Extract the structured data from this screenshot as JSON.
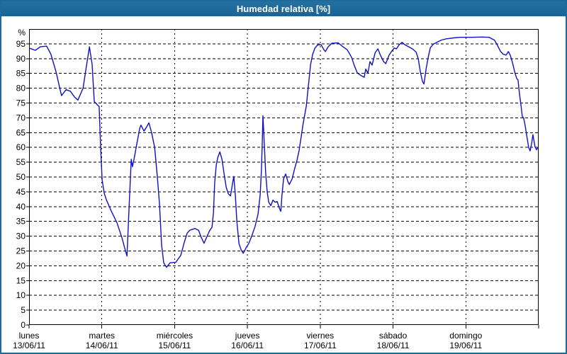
{
  "window": {
    "title": "Humedad relativa [%]"
  },
  "colors": {
    "frame": "#1e6a9d",
    "titlebar_bg": "#1d6899",
    "titlebar_text": "#ffffff",
    "chart_bg": "#ffffff",
    "plot_border": "#000000",
    "grid": "#000000",
    "tick_text": "#000000",
    "line": "#0f10c8"
  },
  "chart_data": {
    "type": "line",
    "title": "Humedad relativa [%]",
    "y_unit_label": "%",
    "ylim": [
      0,
      100
    ],
    "y_ticks": [
      0,
      5,
      10,
      15,
      20,
      25,
      30,
      35,
      40,
      45,
      50,
      55,
      60,
      65,
      70,
      75,
      80,
      85,
      90,
      95
    ],
    "x_range_hours": [
      0,
      168
    ],
    "grid": "dashed",
    "legend_position": "none",
    "x_axis_days": [
      {
        "name": "lunes",
        "date": "13/06/11"
      },
      {
        "name": "martes",
        "date": "14/06/11"
      },
      {
        "name": "miércoles",
        "date": "15/06/11"
      },
      {
        "name": "jueves",
        "date": "16/06/11"
      },
      {
        "name": "viernes",
        "date": "17/06/11"
      },
      {
        "name": "sábado",
        "date": "18/06/11"
      },
      {
        "name": "domingo",
        "date": "19/06/11"
      }
    ],
    "series": [
      {
        "name": "Humedad relativa",
        "unit": "%",
        "color": "#0f10c8",
        "points": [
          [
            0.2,
            93.5
          ],
          [
            2.1,
            92.8
          ],
          [
            3.7,
            94.0
          ],
          [
            5.8,
            94.2
          ],
          [
            7.2,
            91.5
          ],
          [
            8.9,
            85.5
          ],
          [
            10.7,
            77.5
          ],
          [
            12.2,
            79.5
          ],
          [
            13.6,
            79.0
          ],
          [
            15.0,
            77.0
          ],
          [
            16.1,
            76.0
          ],
          [
            17.8,
            80.0
          ],
          [
            18.7,
            86.0
          ],
          [
            19.9,
            94.0
          ],
          [
            20.8,
            88.0
          ],
          [
            21.5,
            75.5
          ],
          [
            22.4,
            74.5
          ],
          [
            23.1,
            73.8
          ],
          [
            23.6,
            60.0
          ],
          [
            24.1,
            49.0
          ],
          [
            24.8,
            44.5
          ],
          [
            25.5,
            42.3
          ],
          [
            27.1,
            38.5
          ],
          [
            29.0,
            34.5
          ],
          [
            30.6,
            29.5
          ],
          [
            31.8,
            25.0
          ],
          [
            32.3,
            23.3
          ],
          [
            32.7,
            33.0
          ],
          [
            33.2,
            45.0
          ],
          [
            33.7,
            56.0
          ],
          [
            34.1,
            53.5
          ],
          [
            34.6,
            56.0
          ],
          [
            35.5,
            61.0
          ],
          [
            36.5,
            66.5
          ],
          [
            36.9,
            67.5
          ],
          [
            37.9,
            65.5
          ],
          [
            38.8,
            67.0
          ],
          [
            39.5,
            68.3
          ],
          [
            40.4,
            65.0
          ],
          [
            41.4,
            60.0
          ],
          [
            42.3,
            50.0
          ],
          [
            43.0,
            41.0
          ],
          [
            43.7,
            27.0
          ],
          [
            44.4,
            21.0
          ],
          [
            45.3,
            19.5
          ],
          [
            46.5,
            21.0
          ],
          [
            48.4,
            21.2
          ],
          [
            50.0,
            23.5
          ],
          [
            51.2,
            28.0
          ],
          [
            52.1,
            31.0
          ],
          [
            53.0,
            32.0
          ],
          [
            54.7,
            32.6
          ],
          [
            55.9,
            32.0
          ],
          [
            56.8,
            29.5
          ],
          [
            57.7,
            27.6
          ],
          [
            58.9,
            30.5
          ],
          [
            59.6,
            32.0
          ],
          [
            60.3,
            33.0
          ],
          [
            60.8,
            38.0
          ],
          [
            61.2,
            48.0
          ],
          [
            61.7,
            54.0
          ],
          [
            62.2,
            56.5
          ],
          [
            62.9,
            58.5
          ],
          [
            63.6,
            56.0
          ],
          [
            64.3,
            51.0
          ],
          [
            65.0,
            46.5
          ],
          [
            65.7,
            44.3
          ],
          [
            66.4,
            43.6
          ],
          [
            67.1,
            48.0
          ],
          [
            67.5,
            50.2
          ],
          [
            68.0,
            44.0
          ],
          [
            68.5,
            35.0
          ],
          [
            69.2,
            27.5
          ],
          [
            69.9,
            25.4
          ],
          [
            70.6,
            24.2
          ],
          [
            71.5,
            26.0
          ],
          [
            72.4,
            27.5
          ],
          [
            73.4,
            30.0
          ],
          [
            74.5,
            33.2
          ],
          [
            75.5,
            37.5
          ],
          [
            76.2,
            44.0
          ],
          [
            76.6,
            52.0
          ],
          [
            76.9,
            62.0
          ],
          [
            77.1,
            70.7
          ],
          [
            77.6,
            60.0
          ],
          [
            78.0,
            51.5
          ],
          [
            78.5,
            45.0
          ],
          [
            79.0,
            41.5
          ],
          [
            79.7,
            40.3
          ],
          [
            80.4,
            42.2
          ],
          [
            81.1,
            41.5
          ],
          [
            81.8,
            41.7
          ],
          [
            82.5,
            39.5
          ],
          [
            83.0,
            38.4
          ],
          [
            83.4,
            44.0
          ],
          [
            83.9,
            49.4
          ],
          [
            84.6,
            51.0
          ],
          [
            85.3,
            48.5
          ],
          [
            85.8,
            47.5
          ],
          [
            86.7,
            49.3
          ],
          [
            87.6,
            53.0
          ],
          [
            88.3,
            55.5
          ],
          [
            89.0,
            58.8
          ],
          [
            89.7,
            63.5
          ],
          [
            90.4,
            68.3
          ],
          [
            91.4,
            74.0
          ],
          [
            92.1,
            81.0
          ],
          [
            92.8,
            88.0
          ],
          [
            93.5,
            91.5
          ],
          [
            94.2,
            93.5
          ],
          [
            95.1,
            94.6
          ],
          [
            96.3,
            94.7
          ],
          [
            97.2,
            93.0
          ],
          [
            97.7,
            92.4
          ],
          [
            98.6,
            94.0
          ],
          [
            99.8,
            95.2
          ],
          [
            101.9,
            95.3
          ],
          [
            103.5,
            94.0
          ],
          [
            104.9,
            93.0
          ],
          [
            106.3,
            90.5
          ],
          [
            107.3,
            87.5
          ],
          [
            108.2,
            85.2
          ],
          [
            109.4,
            84.3
          ],
          [
            110.5,
            83.7
          ],
          [
            111.0,
            86.5
          ],
          [
            111.7,
            85.0
          ],
          [
            112.4,
            89.0
          ],
          [
            113.1,
            87.8
          ],
          [
            114.1,
            92.0
          ],
          [
            115.0,
            93.3
          ],
          [
            115.9,
            91.0
          ],
          [
            116.9,
            89.0
          ],
          [
            117.6,
            88.3
          ],
          [
            118.7,
            91.2
          ],
          [
            119.7,
            92.7
          ],
          [
            120.4,
            93.6
          ],
          [
            121.1,
            93.3
          ],
          [
            122.0,
            94.7
          ],
          [
            123.0,
            95.5
          ],
          [
            123.9,
            94.7
          ],
          [
            125.3,
            93.9
          ],
          [
            126.4,
            93.3
          ],
          [
            127.6,
            92.2
          ],
          [
            128.3,
            90.0
          ],
          [
            129.0,
            85.5
          ],
          [
            129.7,
            82.3
          ],
          [
            130.2,
            81.4
          ],
          [
            130.9,
            86.5
          ],
          [
            131.6,
            90.5
          ],
          [
            132.3,
            93.7
          ],
          [
            133.2,
            94.8
          ],
          [
            134.4,
            95.5
          ],
          [
            136.0,
            96.3
          ],
          [
            137.6,
            96.7
          ],
          [
            140.0,
            97.0
          ],
          [
            142.3,
            97.2
          ],
          [
            145.8,
            97.2
          ],
          [
            149.3,
            97.3
          ],
          [
            151.7,
            97.2
          ],
          [
            153.5,
            96.2
          ],
          [
            154.5,
            94.3
          ],
          [
            155.4,
            92.5
          ],
          [
            156.3,
            91.5
          ],
          [
            157.3,
            91.2
          ],
          [
            158.0,
            92.4
          ],
          [
            158.7,
            91.0
          ],
          [
            159.4,
            88.5
          ],
          [
            160.1,
            85.5
          ],
          [
            160.8,
            83.2
          ],
          [
            161.2,
            82.8
          ],
          [
            161.7,
            78.0
          ],
          [
            162.2,
            74.0
          ],
          [
            162.6,
            70.5
          ],
          [
            163.1,
            69.8
          ],
          [
            163.6,
            67.0
          ],
          [
            164.3,
            62.5
          ],
          [
            164.7,
            60.0
          ],
          [
            165.2,
            58.8
          ],
          [
            165.7,
            61.5
          ],
          [
            166.1,
            64.3
          ],
          [
            166.8,
            60.2
          ],
          [
            167.3,
            59.2
          ],
          [
            167.8,
            60.0
          ]
        ]
      }
    ]
  }
}
